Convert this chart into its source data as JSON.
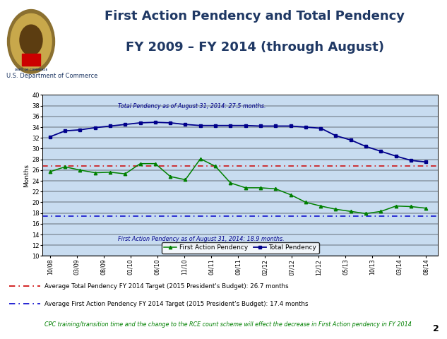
{
  "title_line1": "First Action Pendency and Total Pendency",
  "title_line2": "FY 2009 – FY 2014 (through August)",
  "subtitle": "U.S. Department of Commerce",
  "ylabel": "Months",
  "ylim": [
    10,
    40
  ],
  "yticks": [
    10,
    12,
    14,
    16,
    18,
    20,
    22,
    24,
    26,
    28,
    30,
    32,
    34,
    36,
    38,
    40
  ],
  "x_labels": [
    "10/08",
    "03/09",
    "08/09",
    "01/10",
    "06/10",
    "11/10",
    "04/11",
    "09/11",
    "02/12",
    "07/12",
    "12/12",
    "05/13",
    "10/13",
    "03/14",
    "08/14"
  ],
  "first_action_pendency": [
    25.7,
    26.6,
    26.0,
    25.5,
    25.6,
    25.3,
    27.2,
    27.2,
    24.8,
    24.2,
    28.1,
    26.7,
    23.6,
    22.7,
    22.7,
    22.5,
    21.4,
    20.0,
    19.3,
    18.7,
    18.3,
    17.9,
    18.3,
    19.3,
    19.2,
    18.9
  ],
  "total_pendency": [
    32.2,
    33.3,
    33.5,
    33.9,
    34.2,
    34.5,
    34.8,
    34.9,
    34.8,
    34.5,
    34.3,
    34.3,
    34.3,
    34.3,
    34.2,
    34.2,
    34.2,
    34.0,
    33.8,
    32.4,
    31.6,
    30.4,
    29.5,
    28.6,
    27.8,
    27.5
  ],
  "avg_total_pendency_target": 26.7,
  "avg_first_action_target": 17.4,
  "annotation_total": "Total Pendency as of August 31, 2014: 27.5 months.",
  "annotation_first": "First Action Pendency as of August 31, 2014: 18.9 months.",
  "first_action_color": "#008000",
  "total_color": "#00008B",
  "avg_total_color": "#CC0000",
  "avg_first_color": "#0000CC",
  "panel_bg": "#B8D0E8",
  "plot_bg": "#C8DCF0",
  "header_bg": "#FFFFFF",
  "border_color": "#2F4F8F",
  "legend_label_first": "First Action Pendency",
  "legend_label_total": "Total Pendency",
  "legend1_text": "Average Total Pendency FY 2014 Target (2015 President's Budget): 26.7 months",
  "legend2_text": "Average First Action Pendency FY 2014 Target (2015 President's Budget): 17.4 months",
  "footnote": "CPC training/transition time and the change to the RCE count scheme will effect the decrease in First Action pendency in FY 2014",
  "title_color": "#1F3864",
  "subtitle_color": "#1F3864",
  "annotation_color": "#00008B",
  "page_num": "2"
}
